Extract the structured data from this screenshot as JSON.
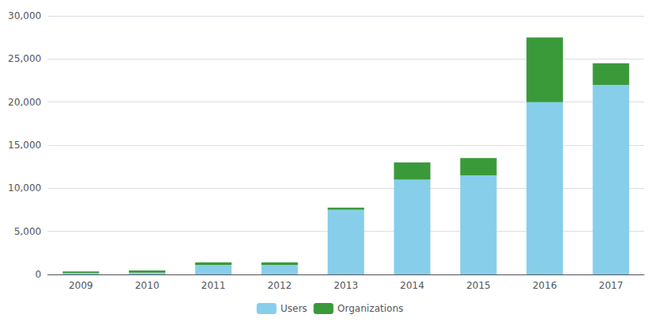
{
  "chart_data": {
    "type": "bar",
    "stacked": true,
    "categories": [
      "2009",
      "2010",
      "2011",
      "2012",
      "2013",
      "2014",
      "2015",
      "2016",
      "2017"
    ],
    "series": [
      {
        "name": "Users",
        "color": "#87CEEB",
        "values": [
          150,
          200,
          1100,
          1100,
          7500,
          11000,
          11500,
          20000,
          22000
        ]
      },
      {
        "name": "Organizations",
        "color": "#3a9a3a",
        "values": [
          200,
          250,
          300,
          300,
          250,
          2000,
          2000,
          7500,
          2500
        ]
      }
    ],
    "ylim": [
      0,
      30000
    ],
    "yticks": [
      0,
      {
        "value": 5000,
        "label": "5,000"
      },
      {
        "value": 10000,
        "label": "10,000"
      },
      {
        "value": 15000,
        "label": "15,000"
      },
      {
        "value": 20000,
        "label": "20,000"
      },
      {
        "value": 25000,
        "label": "25,000"
      },
      {
        "value": 30000,
        "label": "30,000"
      }
    ],
    "grid": true,
    "legend": "bottom"
  }
}
